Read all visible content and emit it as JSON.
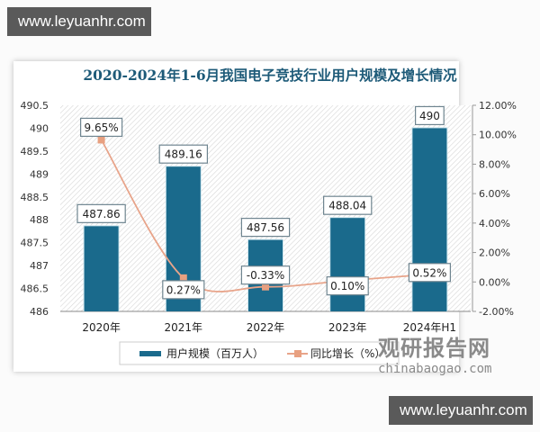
{
  "watermarks": {
    "top": "www.leyuanhr.com",
    "bottom": "www.leyuanhr.com"
  },
  "brand": {
    "name_cn": "观研报告网",
    "domain": "chinabaogao.com"
  },
  "chart_data": {
    "type": "bar",
    "title": "2020-2024年1-6月我国电子竞技行业用户规模及增长情况",
    "categories": [
      "2020年",
      "2021年",
      "2022年",
      "2023年",
      "2024年H1"
    ],
    "series": [
      {
        "name": "用户规模（百万人）",
        "type": "bar",
        "axis": "left",
        "color": "#1a6a8c",
        "values": [
          487.86,
          489.16,
          487.56,
          488.04,
          490
        ],
        "labels": [
          "487.86",
          "489.16",
          "487.56",
          "488.04",
          "490"
        ]
      },
      {
        "name": "同比增长（%）",
        "type": "line",
        "axis": "right",
        "color": "#e8a48a",
        "values": [
          9.65,
          0.27,
          -0.33,
          0.1,
          0.52
        ],
        "labels": [
          "9.65%",
          "0.27%",
          "-0.33%",
          "0.10%",
          "0.52%"
        ]
      }
    ],
    "y_left": {
      "min": 486,
      "max": 490.5,
      "step": 0.5,
      "ticks": [
        "490.5",
        "490",
        "489.5",
        "489",
        "488.5",
        "488",
        "487.5",
        "487",
        "486.5",
        "486"
      ]
    },
    "y_right": {
      "min": -2,
      "max": 12,
      "step": 2,
      "ticks": [
        "12.00%",
        "10.00%",
        "8.00%",
        "6.00%",
        "4.00%",
        "2.00%",
        "0.00%",
        "-2.00%"
      ]
    },
    "legend_position": "bottom",
    "grid": false
  }
}
